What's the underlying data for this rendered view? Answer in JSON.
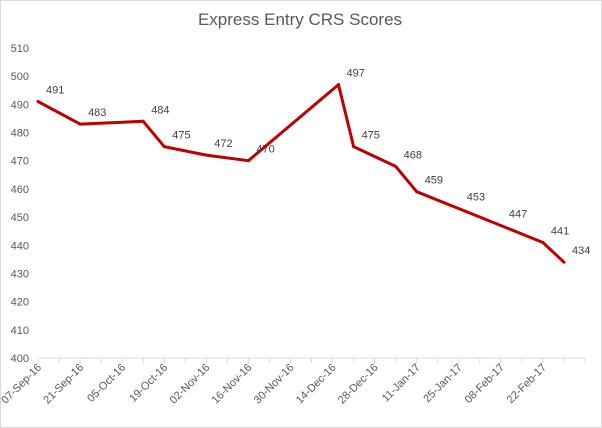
{
  "chart_data": {
    "type": "line",
    "title": "Express Entry CRS Scores",
    "xlabel": "",
    "ylabel": "",
    "ylim": [
      400,
      510
    ],
    "yticks": [
      400,
      410,
      420,
      430,
      440,
      450,
      460,
      470,
      480,
      490,
      500,
      510
    ],
    "x_range": [
      "2016-09-07",
      "2017-03-08"
    ],
    "xtick_labels": [
      "07-Sep-16",
      "21-Sep-16",
      "05-Oct-16",
      "19-Oct-16",
      "02-Nov-16",
      "16-Nov-16",
      "30-Nov-16",
      "14-Dec-16",
      "28-Dec-16",
      "11-Jan-17",
      "25-Jan-17",
      "08-Feb-17",
      "22-Feb-17"
    ],
    "xtick_dates": [
      "2016-09-07",
      "2016-09-21",
      "2016-10-05",
      "2016-10-19",
      "2016-11-02",
      "2016-11-16",
      "2016-11-30",
      "2016-12-14",
      "2016-12-28",
      "2017-01-11",
      "2017-01-25",
      "2017-02-08",
      "2017-02-22"
    ],
    "grid": false,
    "legend": "none",
    "series": [
      {
        "name": "",
        "color": "#c00000",
        "points": [
          {
            "x": "2016-09-07",
            "y": 491
          },
          {
            "x": "2016-09-21",
            "y": 483
          },
          {
            "x": "2016-10-12",
            "y": 484
          },
          {
            "x": "2016-10-19",
            "y": 475
          },
          {
            "x": "2016-11-02",
            "y": 472
          },
          {
            "x": "2016-11-16",
            "y": 470
          },
          {
            "x": "2016-12-16",
            "y": 497
          },
          {
            "x": "2016-12-21",
            "y": 475
          },
          {
            "x": "2017-01-04",
            "y": 468
          },
          {
            "x": "2017-01-11",
            "y": 459
          },
          {
            "x": "2017-01-25",
            "y": 453
          },
          {
            "x": "2017-02-08",
            "y": 447
          },
          {
            "x": "2017-02-22",
            "y": 441
          },
          {
            "x": "2017-03-01",
            "y": 434
          }
        ]
      }
    ]
  }
}
